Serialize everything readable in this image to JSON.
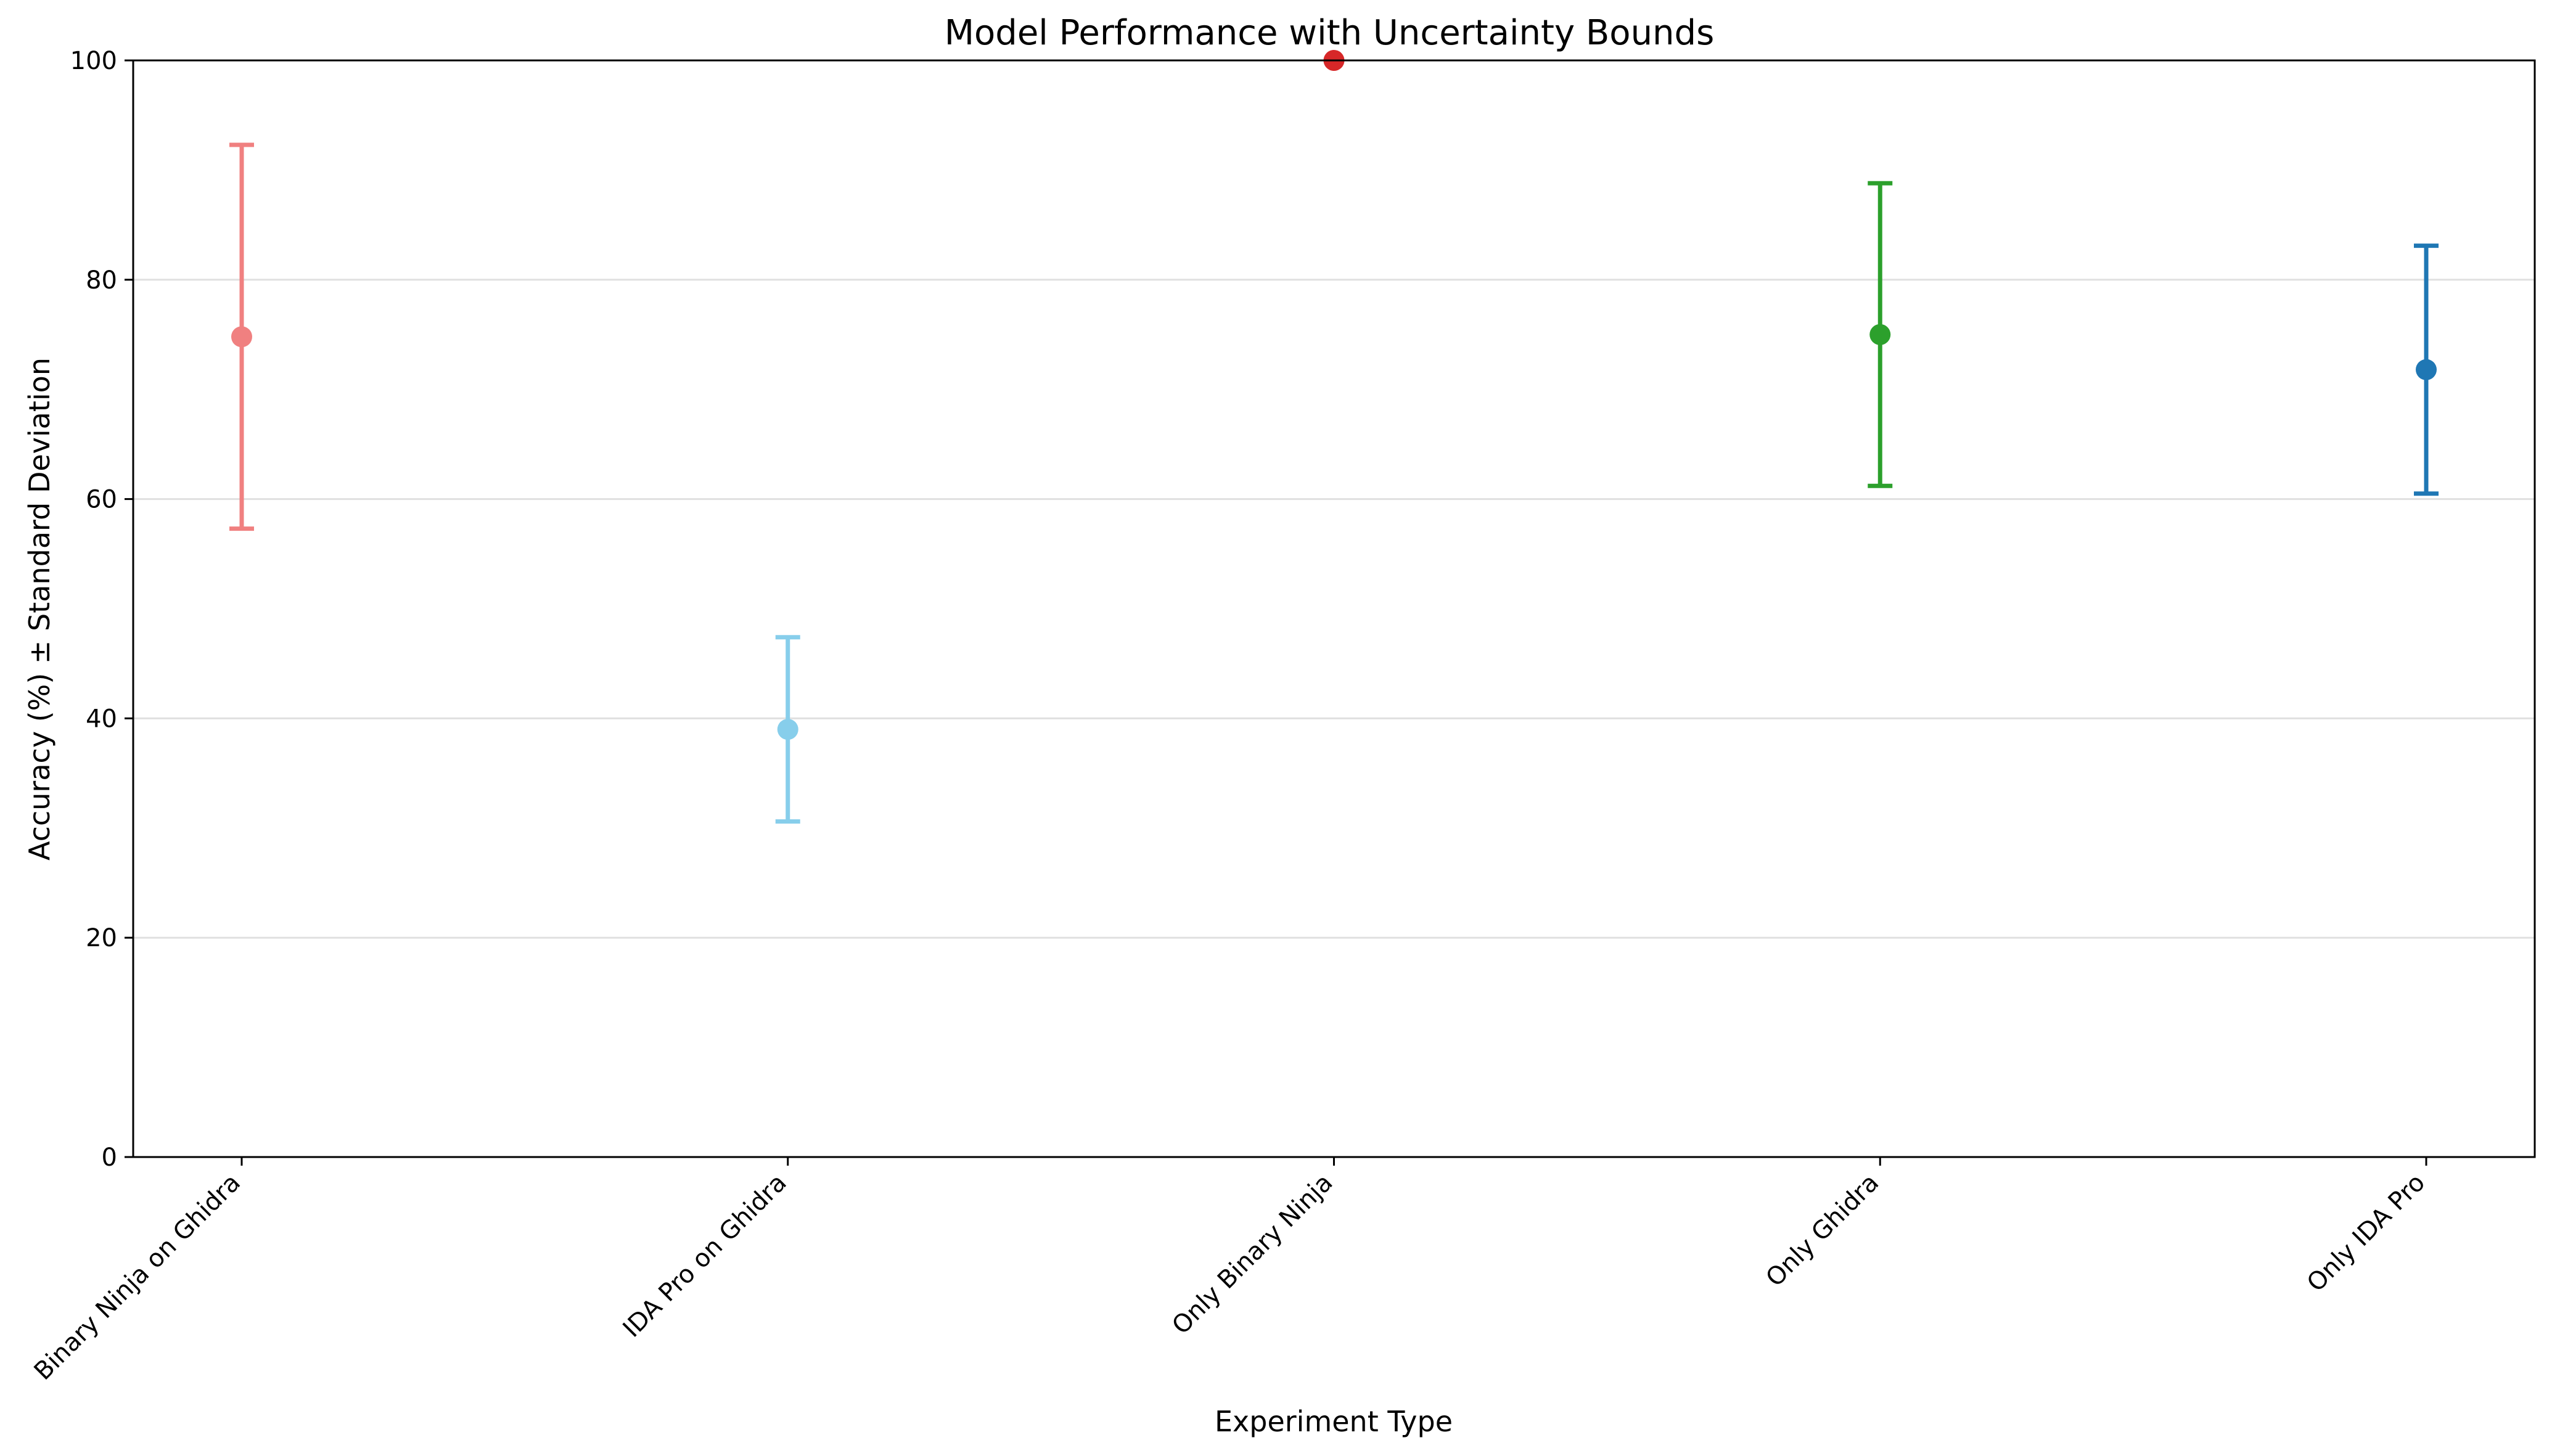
{
  "chart_data": {
    "type": "scatter",
    "title": "Model Performance with Uncertainty Bounds",
    "xlabel": "Experiment Type",
    "ylabel": "Accuracy (%) ± Standard Deviation",
    "ylim": [
      0,
      100
    ],
    "yticks": [
      0,
      20,
      40,
      60,
      80,
      100
    ],
    "grid": "y-axis only",
    "legend": "none",
    "categories": [
      "Binary Ninja on Ghidra",
      "IDA Pro on Ghidra",
      "Only Binary Ninja",
      "Only Ghidra",
      "Only IDA Pro"
    ],
    "values": [
      74.8,
      39.0,
      100.0,
      75.0,
      71.8
    ],
    "std": [
      17.5,
      8.4,
      0.0,
      13.8,
      11.3
    ],
    "colors": [
      "#f08080",
      "#87ceeb",
      "#d62728",
      "#2ca02c",
      "#1f77b4"
    ]
  }
}
